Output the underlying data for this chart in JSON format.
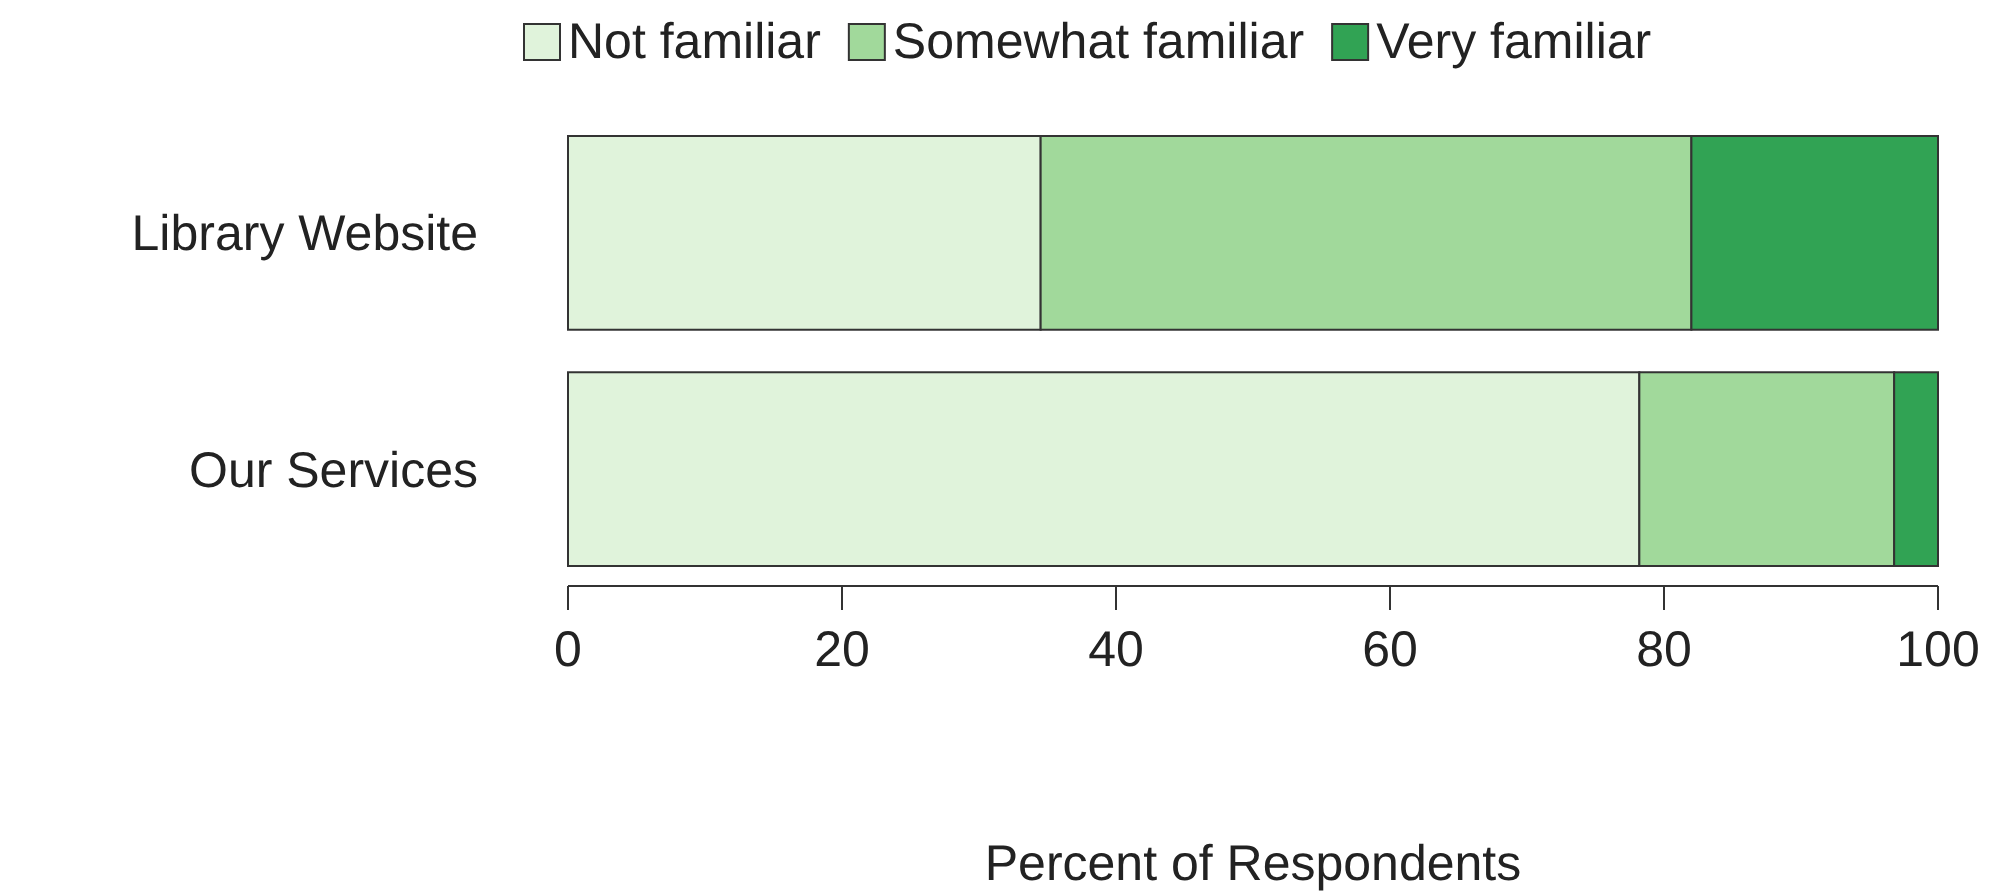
{
  "chart_data": {
    "type": "bar",
    "orientation": "horizontal",
    "stacked": true,
    "xlabel": "Percent of Respondents",
    "categories": [
      "Library Website",
      "Our Services"
    ],
    "series": [
      {
        "name": "Not familiar",
        "color": "#e0f3db",
        "values": [
          34.5,
          78.2
        ]
      },
      {
        "name": "Somewhat familiar",
        "color": "#a1d99b",
        "values": [
          47.5,
          18.6
        ]
      },
      {
        "name": "Very familiar",
        "color": "#31a354",
        "values": [
          18,
          3.2
        ]
      }
    ],
    "xlim": [
      0,
      100
    ],
    "xticks": [
      0,
      20,
      40,
      60,
      80,
      100
    ],
    "legend": "top",
    "grid": false
  }
}
